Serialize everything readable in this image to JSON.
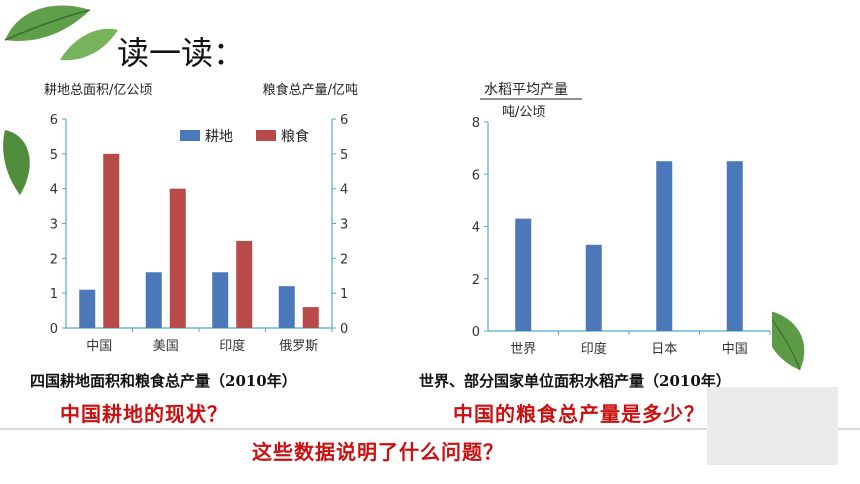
{
  "page_title": "读一读：",
  "chart_data": [
    {
      "type": "bar",
      "ylabel_left": "耕地总面积/亿公顷",
      "ylabel_right": "粮食总产量/亿吨",
      "categories": [
        "中国",
        "美国",
        "印度",
        "俄罗斯"
      ],
      "series": [
        {
          "name": "耕地",
          "values": [
            1.1,
            1.6,
            1.6,
            1.2
          ],
          "color": "#4a78b8"
        },
        {
          "name": "粮食",
          "values": [
            5.0,
            4.0,
            2.5,
            0.6
          ],
          "color": "#b84a4a"
        }
      ],
      "ylim": [
        0,
        6
      ],
      "yticks": [
        "0",
        "1",
        "2",
        "3",
        "4",
        "5",
        "6"
      ],
      "legend_position": "top-right",
      "caption": "四国耕地面积和粮食总产量（2010年）"
    },
    {
      "type": "bar",
      "ylabel": "水稻平均产量",
      "yunit": "吨/公顷",
      "categories": [
        "世界",
        "印度",
        "日本",
        "中国"
      ],
      "values": [
        4.3,
        3.3,
        6.5,
        6.5
      ],
      "color": "#4a78b8",
      "ylim": [
        0,
        8
      ],
      "yticks": [
        "0",
        "2",
        "4",
        "6",
        "8"
      ],
      "caption": "世界、部分国家单位面积水稻产量（2010年）"
    }
  ],
  "questions": {
    "q1": "中国耕地的现状？",
    "q2": "中国的粮食总产量是多少？",
    "q3": "这些数据说明了什么问题？"
  }
}
